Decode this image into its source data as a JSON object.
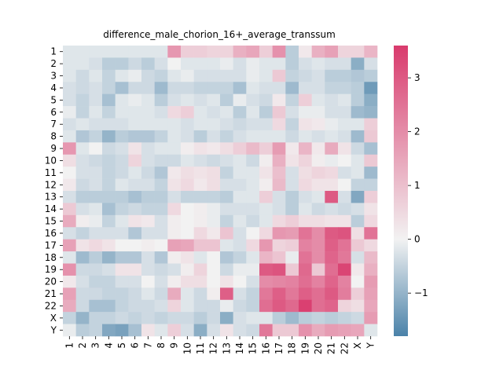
{
  "chart_data": {
    "type": "heatmap",
    "title": "difference_male_chorion_16+_average_transsum",
    "xlabel": "",
    "ylabel": "",
    "categories": [
      "1",
      "2",
      "3",
      "4",
      "5",
      "6",
      "7",
      "8",
      "9",
      "10",
      "11",
      "12",
      "13",
      "14",
      "15",
      "16",
      "17",
      "18",
      "19",
      "20",
      "21",
      "22",
      "X",
      "Y"
    ],
    "row_labels": [
      "1",
      "2",
      "3",
      "4",
      "5",
      "6",
      "7",
      "8",
      "9",
      "10",
      "11",
      "12",
      "13",
      "14",
      "15",
      "16",
      "17",
      "18",
      "19",
      "20",
      "21",
      "22",
      "X",
      "Y"
    ],
    "col_labels": [
      "1",
      "2",
      "3",
      "4",
      "5",
      "6",
      "7",
      "8",
      "9",
      "10",
      "11",
      "12",
      "13",
      "14",
      "15",
      "16",
      "17",
      "18",
      "19",
      "20",
      "21",
      "22",
      "X",
      "Y"
    ],
    "values": [
      [
        -0.2,
        -0.2,
        -0.2,
        -0.2,
        -0.2,
        -0.2,
        -0.2,
        -0.2,
        1.8,
        0.7,
        0.7,
        0.6,
        0.6,
        1.3,
        1.5,
        0.7,
        1.9,
        -0.6,
        0.2,
        1.3,
        1.6,
        0.6,
        0.6,
        1.2
      ],
      [
        -0.2,
        -0.2,
        -0.3,
        -0.6,
        -0.6,
        -0.4,
        -0.6,
        -0.3,
        0.0,
        -0.2,
        -0.2,
        -0.2,
        -0.1,
        -0.3,
        -0.1,
        -0.2,
        -0.2,
        -0.6,
        -0.3,
        -0.2,
        -0.3,
        -0.3,
        -1.1,
        -0.3
      ],
      [
        -0.2,
        -0.4,
        -0.2,
        -0.5,
        -0.2,
        -0.1,
        -0.4,
        -0.5,
        -0.2,
        -0.1,
        -0.3,
        -0.3,
        -0.3,
        -0.3,
        -0.1,
        -0.2,
        0.8,
        -0.5,
        -0.4,
        -0.3,
        -0.6,
        -0.6,
        -0.7,
        -0.6
      ],
      [
        -0.3,
        -0.4,
        -0.3,
        -0.5,
        -0.8,
        -0.4,
        -0.4,
        -0.9,
        -0.4,
        -0.4,
        -0.5,
        -0.5,
        -0.5,
        -0.8,
        -0.2,
        -0.3,
        -0.3,
        -0.9,
        -0.3,
        -0.3,
        -0.5,
        -0.5,
        -0.6,
        -1.4
      ],
      [
        -0.3,
        -0.5,
        -0.3,
        -0.8,
        -0.2,
        -0.1,
        -0.2,
        -0.6,
        -0.3,
        -0.2,
        -0.3,
        -0.2,
        -0.6,
        -0.1,
        -0.3,
        -0.4,
        0.2,
        -0.5,
        0.7,
        -0.2,
        -0.3,
        -0.2,
        -0.6,
        -1.1
      ],
      [
        -0.1,
        -0.5,
        -0.2,
        -0.5,
        -0.2,
        -0.2,
        -0.2,
        -0.3,
        0.5,
        0.7,
        -0.2,
        -0.3,
        -0.2,
        -0.6,
        -0.2,
        -0.6,
        0.8,
        -0.3,
        -0.1,
        -0.1,
        -0.3,
        -0.3,
        -0.9,
        -1.0
      ],
      [
        -0.3,
        -0.2,
        -0.3,
        -0.3,
        -0.3,
        -0.2,
        -0.2,
        -0.2,
        -0.2,
        -0.3,
        -0.2,
        -0.2,
        -0.3,
        -0.4,
        -0.3,
        -0.3,
        0.5,
        -0.5,
        0.3,
        0.2,
        -0.1,
        -0.2,
        -0.2,
        0.7
      ],
      [
        -0.2,
        -0.7,
        -0.5,
        -1.0,
        -0.6,
        -0.7,
        -0.7,
        -0.5,
        -0.2,
        -0.3,
        -0.6,
        -0.3,
        -0.5,
        -0.3,
        -0.2,
        -0.2,
        -0.2,
        -0.4,
        -0.2,
        -0.3,
        -0.2,
        -0.3,
        -0.9,
        0.8
      ],
      [
        1.8,
        -0.2,
        0.0,
        -0.4,
        -0.3,
        0.3,
        -0.3,
        -0.2,
        -0.2,
        0.1,
        0.3,
        0.2,
        0.4,
        0.7,
        1.1,
        0.7,
        1.7,
        0.2,
        1.2,
        0.2,
        1.4,
        0.3,
        -0.4,
        -0.8
      ],
      [
        0.4,
        -0.3,
        -0.4,
        -0.5,
        -0.4,
        0.6,
        -0.3,
        -0.4,
        -0.4,
        -0.2,
        -0.3,
        -0.4,
        -0.3,
        -0.2,
        -0.4,
        0.1,
        1.3,
        0.3,
        0.6,
        0.1,
        -0.1,
        0.0,
        -0.2,
        0.8
      ],
      [
        0.0,
        -0.3,
        -0.3,
        -0.5,
        -0.4,
        -0.2,
        -0.4,
        -0.7,
        0.2,
        0.4,
        0.3,
        0.4,
        -0.5,
        -0.2,
        -0.2,
        0.3,
        1.0,
        -0.3,
        0.4,
        0.6,
        0.5,
        -0.3,
        -0.2,
        -0.9
      ],
      [
        0.2,
        -0.4,
        -0.3,
        -0.5,
        -0.2,
        -0.3,
        -0.3,
        -0.5,
        0.3,
        0.5,
        0.2,
        0.4,
        -0.3,
        -0.3,
        -0.2,
        0.1,
        1.1,
        -0.3,
        0.5,
        0.3,
        0.3,
        0.0,
        -0.5,
        -0.5
      ],
      [
        -0.3,
        -0.6,
        -0.6,
        -0.6,
        -0.6,
        -0.8,
        -0.6,
        -0.6,
        -0.3,
        -0.5,
        -0.5,
        -0.5,
        -0.6,
        -0.2,
        -0.2,
        0.7,
        -0.3,
        -0.6,
        -0.3,
        -0.2,
        3.0,
        -0.3,
        -1.2,
        0.7
      ],
      [
        0.8,
        -0.3,
        -0.2,
        -0.8,
        -0.5,
        -0.4,
        -0.5,
        -0.5,
        0.5,
        0.0,
        0.1,
        -0.1,
        -0.3,
        -0.3,
        -0.3,
        -0.2,
        -0.3,
        -0.6,
        -0.2,
        -0.4,
        -0.3,
        -0.4,
        -0.3,
        0.3
      ],
      [
        1.4,
        0.1,
        -0.1,
        -0.5,
        -0.2,
        0.3,
        0.2,
        -0.3,
        0.1,
        0.0,
        0.1,
        -0.1,
        -0.5,
        -0.2,
        -0.4,
        -0.2,
        0.5,
        0.7,
        0.4,
        0.4,
        0.3,
        0.3,
        -0.6,
        0.5
      ],
      [
        -0.3,
        -0.5,
        -0.3,
        -0.3,
        -0.3,
        -0.7,
        -0.3,
        -0.3,
        0.1,
        0.0,
        0.5,
        0.2,
        0.9,
        -0.3,
        0.0,
        0.5,
        1.8,
        1.7,
        2.5,
        2.0,
        3.0,
        3.1,
        0.4,
        2.5
      ],
      [
        1.6,
        0.3,
        0.5,
        0.3,
        0.0,
        0.0,
        0.1,
        0.0,
        1.6,
        1.5,
        0.9,
        0.9,
        -0.2,
        -0.3,
        0.5,
        1.8,
        0.6,
        0.7,
        2.2,
        2.0,
        2.9,
        2.5,
        0.8,
        0.5
      ],
      [
        -0.2,
        -0.9,
        -0.6,
        -1.0,
        -0.7,
        -0.7,
        -0.3,
        -0.7,
        0.1,
        0.3,
        -0.2,
        0.0,
        -0.7,
        -0.5,
        -0.2,
        1.2,
        0.9,
        -0.1,
        2.5,
        2.0,
        2.8,
        2.4,
        -0.3,
        1.1
      ],
      [
        1.9,
        -0.4,
        -0.4,
        -0.3,
        0.3,
        0.3,
        -0.3,
        -0.4,
        -0.3,
        0.1,
        0.6,
        0.0,
        -0.4,
        -0.1,
        -0.1,
        3.0,
        3.1,
        0.8,
        2.7,
        0.8,
        2.6,
        3.4,
        0.2,
        1.3
      ],
      [
        0.2,
        -0.3,
        -0.5,
        -0.5,
        -0.3,
        -0.3,
        0.0,
        -0.3,
        0.1,
        0.4,
        0.4,
        0.0,
        0.3,
        0.0,
        -0.3,
        2.0,
        2.1,
        2.2,
        2.6,
        2.2,
        2.8,
        2.2,
        0.0,
        1.7
      ],
      [
        1.6,
        -0.4,
        -0.4,
        -0.5,
        -0.5,
        -0.4,
        -0.2,
        -0.4,
        1.4,
        -0.2,
        -0.4,
        0.1,
        2.9,
        -0.3,
        -0.5,
        2.4,
        2.9,
        2.4,
        2.9,
        2.6,
        3.0,
        2.3,
        0.7,
        1.6
      ],
      [
        1.4,
        -0.4,
        -0.8,
        -0.8,
        -0.5,
        -0.4,
        -0.4,
        -0.3,
        0.6,
        -0.2,
        -0.4,
        -0.4,
        -0.1,
        -0.4,
        -0.5,
        2.6,
        3.0,
        2.7,
        3.5,
        2.6,
        2.8,
        0.6,
        0.4,
        1.5
      ],
      [
        -0.5,
        -1.0,
        -0.5,
        -0.5,
        -0.4,
        -0.5,
        -0.4,
        -0.5,
        -0.4,
        -0.4,
        -0.6,
        -0.4,
        -1.1,
        -0.3,
        -0.2,
        -0.2,
        -0.6,
        -0.9,
        -0.6,
        -0.5,
        -0.6,
        -0.5,
        -0.4,
        1.7
      ],
      [
        -0.1,
        -0.6,
        -0.5,
        -1.2,
        -1.3,
        -0.8,
        0.3,
        -0.2,
        0.7,
        -0.3,
        -1.1,
        -0.3,
        0.3,
        -0.3,
        -0.4,
        2.4,
        0.8,
        0.8,
        1.9,
        1.4,
        1.7,
        1.6,
        1.5,
        -0.2
      ]
    ],
    "vmin": -1.8,
    "vmax": 3.6,
    "colorbar_ticks": [
      -1,
      0,
      1,
      2,
      3
    ],
    "colormap": {
      "low": "#4a82a9",
      "mid": "#f2f2f2",
      "high": "#d93b6d"
    },
    "grid": false,
    "legend": "colorbar-right"
  }
}
